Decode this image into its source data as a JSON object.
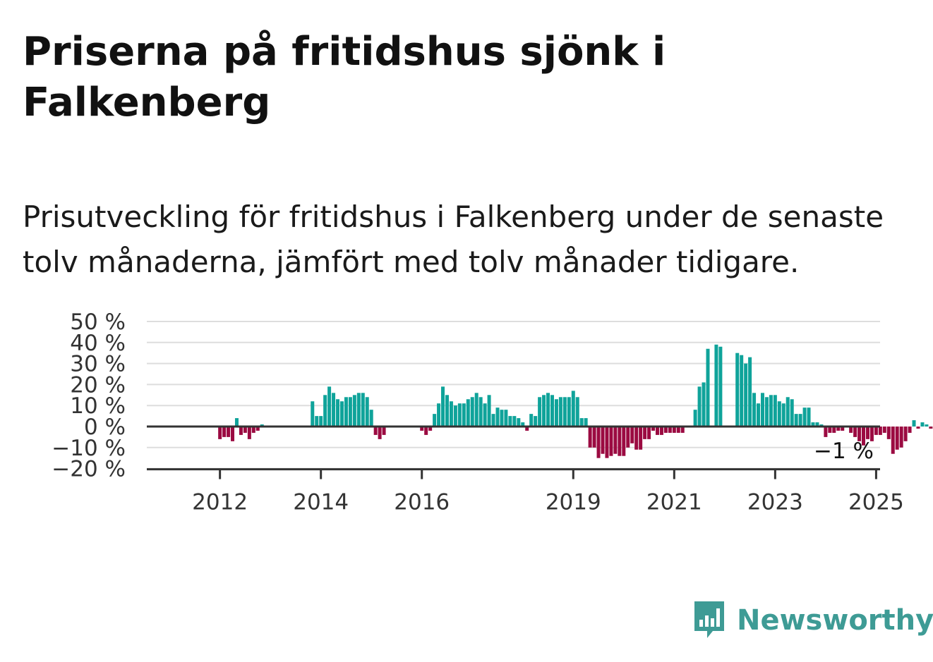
{
  "title": "Priserna på fritidshus sjönk i Falkenberg",
  "subtitle": "Prisutveckling för fritidshus i Falkenberg under de senaste tolv månaderna, jämfört med tolv månader tidigare.",
  "brand": {
    "name": "Newsworthy",
    "icon": "bar-chart-speech-bubble-icon",
    "color": "#3e9b95"
  },
  "colors": {
    "positive": "#0fa39a",
    "negative": "#9b0a41",
    "grid": "#dddddd",
    "axis": "#333333"
  },
  "chart_data": {
    "type": "bar",
    "title": "",
    "xlabel": "",
    "ylabel": "",
    "y_unit": "%",
    "ylim": [
      -20,
      50
    ],
    "y_ticks": [
      {
        "value": 50,
        "label": "50 %"
      },
      {
        "value": 40,
        "label": "40 %"
      },
      {
        "value": 30,
        "label": "30 %"
      },
      {
        "value": 20,
        "label": "20 %"
      },
      {
        "value": 10,
        "label": "10 %"
      },
      {
        "value": 0,
        "label": "0 %"
      },
      {
        "value": -10,
        "label": "−10 %"
      },
      {
        "value": -20,
        "label": "−20 %"
      }
    ],
    "x_ticks": [
      "2012",
      "2014",
      "2016",
      "2019",
      "2021",
      "2023",
      "2025"
    ],
    "grid": true,
    "start_month": "2011-04",
    "values": [
      null,
      null,
      null,
      null,
      null,
      null,
      null,
      null,
      null,
      -6,
      -5,
      -5,
      -7,
      4,
      -4,
      -3,
      -6,
      -3,
      -2,
      1,
      0,
      null,
      null,
      null,
      null,
      null,
      null,
      null,
      null,
      null,
      null,
      12,
      5,
      5,
      15,
      19,
      16,
      13,
      12,
      14,
      14,
      15,
      16,
      16,
      14,
      8,
      -4,
      -6,
      -4,
      null,
      null,
      null,
      null,
      null,
      null,
      null,
      null,
      -2,
      -4,
      -2,
      6,
      11,
      19,
      15,
      12,
      10,
      11,
      11,
      13,
      14,
      16,
      14,
      11,
      15,
      6,
      9,
      8,
      8,
      5,
      5,
      4,
      2,
      -2,
      6,
      5,
      14,
      15,
      16,
      15,
      13,
      14,
      14,
      14,
      17,
      14,
      4,
      4,
      -10,
      -10,
      -15,
      -13,
      -15,
      -14,
      -13,
      -14,
      -14,
      -10,
      -8,
      -11,
      -11,
      -6,
      -6,
      -2,
      -4,
      -4,
      -3,
      -3,
      -3,
      -3,
      -3,
      0,
      0,
      8,
      19,
      21,
      37,
      null,
      39,
      38,
      null,
      null,
      null,
      35,
      34,
      30,
      33,
      16,
      11,
      16,
      14,
      15,
      15,
      12,
      11,
      14,
      13,
      6,
      6,
      9,
      9,
      2,
      2,
      1,
      -5,
      -3,
      -3,
      -2,
      -2,
      null,
      -3,
      -5,
      -7,
      -9,
      -6,
      -7,
      -4,
      -4,
      -3,
      -6,
      -13,
      -11,
      -10,
      -7,
      -3,
      3,
      -1,
      2,
      1,
      -1
    ],
    "end_label": "−1 %"
  }
}
